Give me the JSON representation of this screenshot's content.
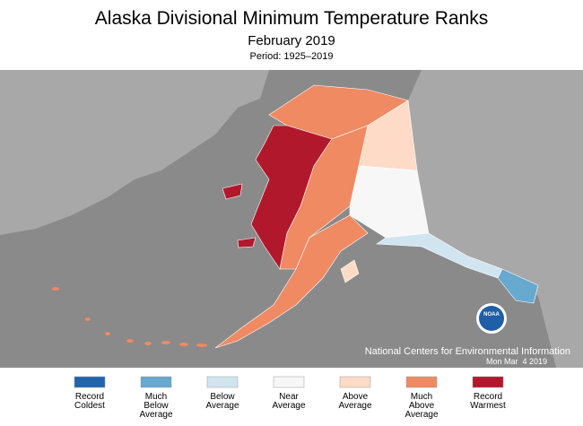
{
  "header": {
    "title": "Alaska Divisional Minimum Temperature Ranks",
    "subtitle": "February 2019",
    "period": "Period: 1925–2019"
  },
  "credit": {
    "org": "National Centers for Environmental Information",
    "date": "Mon Mar  4 2019",
    "logo": "NOAA"
  },
  "legend": [
    {
      "lines": [
        "Record",
        "Coldest"
      ],
      "color": "#2166ac"
    },
    {
      "lines": [
        "Much",
        "Below",
        "Average"
      ],
      "color": "#67a9cf"
    },
    {
      "lines": [
        "Below",
        "Average"
      ],
      "color": "#d1e5f0"
    },
    {
      "lines": [
        "Near",
        "Average"
      ],
      "color": "#f7f7f7"
    },
    {
      "lines": [
        "Above",
        "Average"
      ],
      "color": "#fddbc7"
    },
    {
      "lines": [
        "Much",
        "Above",
        "Average"
      ],
      "color": "#ef8a62"
    },
    {
      "lines": [
        "Record",
        "Warmest"
      ],
      "color": "#b2182b"
    }
  ]
}
